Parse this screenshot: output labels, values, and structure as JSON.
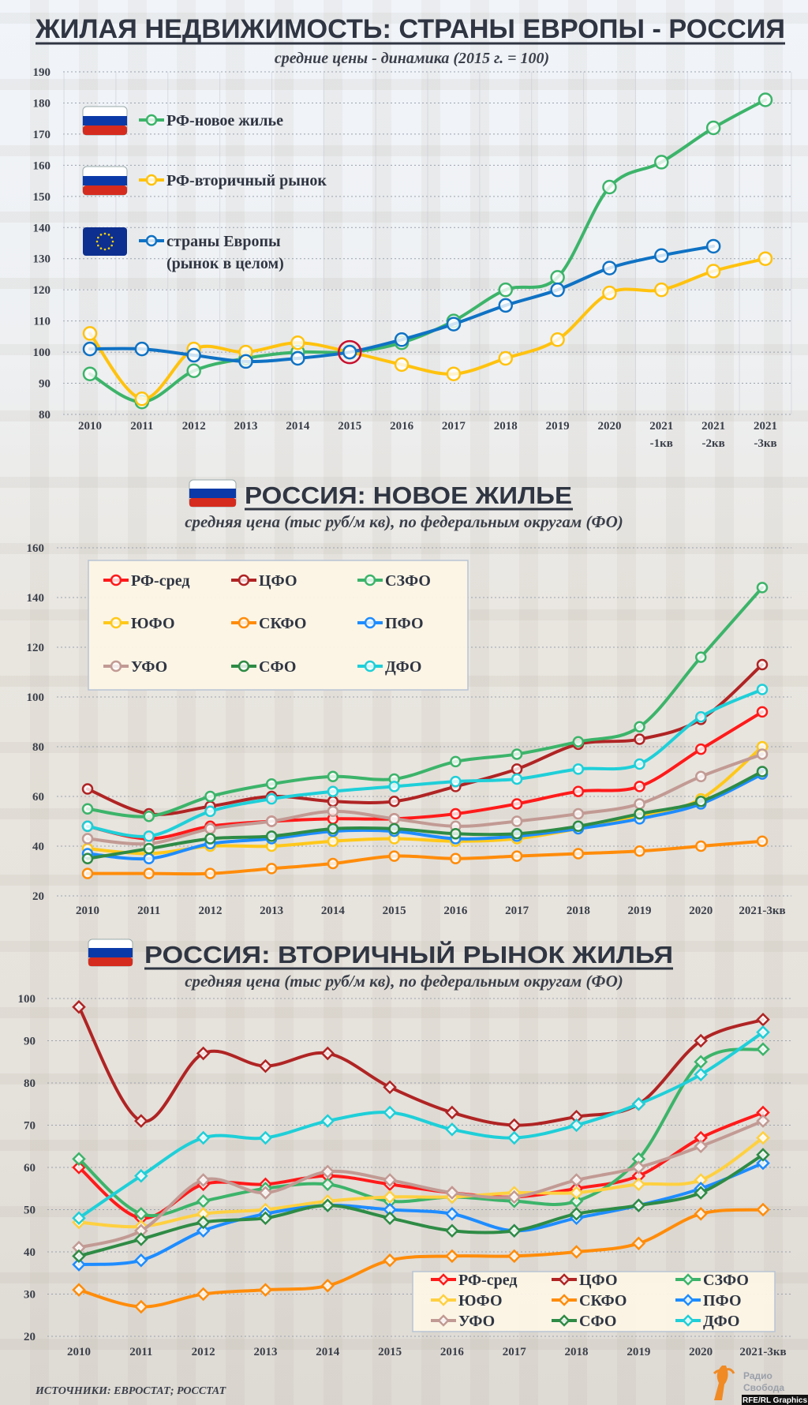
{
  "header": {
    "title": "ЖИЛАЯ НЕДВИЖИМОСТЬ: СТРАНЫ ЕВРОПЫ - РОССИЯ"
  },
  "chart_data": [
    {
      "type": "line",
      "title": "",
      "subtitle": "средние цены - динамика (2015 г. = 100)",
      "categories": [
        "2010",
        "2011",
        "2012",
        "2013",
        "2014",
        "2015",
        "2016",
        "2017",
        "2018",
        "2019",
        "2020",
        "2021 -1кв",
        "2021 -2кв",
        "2021 -3кв"
      ],
      "ylim": [
        80,
        190
      ],
      "yticks": [
        80,
        90,
        100,
        110,
        120,
        130,
        140,
        150,
        160,
        170,
        180,
        190
      ],
      "grid": true,
      "legend": "top-left",
      "highlight_category": "2015",
      "marker": "circle",
      "series": [
        {
          "name": "РФ-новое жилье",
          "flag": "russia-flag",
          "color": "#3cb46a",
          "values": [
            93,
            84,
            94,
            98,
            100,
            100,
            103,
            110,
            120,
            124,
            153,
            161,
            172,
            181
          ]
        },
        {
          "name": "РФ-вторичный рынок",
          "flag": "russia-flag",
          "color": "#ffc20e",
          "values": [
            106,
            85,
            101,
            100,
            103,
            100,
            96,
            93,
            98,
            104,
            119,
            120,
            126,
            130
          ]
        },
        {
          "name": "страны Европы (рынок в целом)",
          "flag": "eu-flag",
          "color": "#0f72c4",
          "values": [
            101,
            101,
            99,
            97,
            98,
            100,
            104,
            109,
            115,
            120,
            127,
            131,
            134,
            null
          ]
        }
      ]
    },
    {
      "type": "line",
      "title": "РОССИЯ: НОВОЕ ЖИЛЬЕ",
      "subtitle": "средняя цена (тыс руб/м кв), по федеральным округам (ФО)",
      "categories": [
        "2010",
        "2011",
        "2012",
        "2013",
        "2014",
        "2015",
        "2016",
        "2017",
        "2018",
        "2019",
        "2020",
        "2021-3кв"
      ],
      "ylim": [
        20,
        160
      ],
      "yticks": [
        20,
        40,
        60,
        80,
        100,
        120,
        140,
        160
      ],
      "grid": true,
      "legend": "top-left",
      "marker": "circle",
      "series": [
        {
          "name": "РФ-сред",
          "color": "#ff1a1a",
          "values": [
            48,
            43,
            48,
            50,
            51,
            51,
            53,
            57,
            62,
            64,
            79,
            94
          ]
        },
        {
          "name": "ЦФО",
          "color": "#b02424",
          "values": [
            63,
            53,
            56,
            60,
            58,
            58,
            64,
            71,
            81,
            83,
            91,
            113
          ]
        },
        {
          "name": "СЗФО",
          "color": "#3cb46a",
          "values": [
            55,
            52,
            60,
            65,
            68,
            67,
            74,
            77,
            82,
            88,
            116,
            144
          ]
        },
        {
          "name": "ЮФО",
          "color": "#ffc81a",
          "values": [
            39,
            37,
            40,
            40,
            42,
            43,
            42,
            43,
            47,
            52,
            59,
            80
          ]
        },
        {
          "name": "СКФО",
          "color": "#ff8c0a",
          "values": [
            29,
            29,
            29,
            31,
            33,
            36,
            35,
            36,
            37,
            38,
            40,
            42
          ]
        },
        {
          "name": "ПФО",
          "color": "#1e8cff",
          "values": [
            37,
            35,
            41,
            43,
            46,
            46,
            43,
            44,
            47,
            51,
            57,
            69
          ]
        },
        {
          "name": "УФО",
          "color": "#c29a94",
          "values": [
            43,
            41,
            47,
            50,
            54,
            51,
            48,
            50,
            53,
            57,
            68,
            77
          ]
        },
        {
          "name": "СФО",
          "color": "#2e8b45",
          "values": [
            35,
            39,
            43,
            44,
            47,
            47,
            45,
            45,
            48,
            53,
            58,
            70
          ]
        },
        {
          "name": "ДФО",
          "color": "#1fcfd8",
          "values": [
            48,
            44,
            54,
            59,
            62,
            64,
            66,
            67,
            71,
            73,
            92,
            103
          ]
        }
      ]
    },
    {
      "type": "line",
      "title": "РОССИЯ: ВТОРИЧНЫЙ РЫНОК ЖИЛЬЯ",
      "subtitle": "средняя цена (тыс руб/м кв), по федеральным округам (ФО)",
      "categories": [
        "2010",
        "2011",
        "2012",
        "2013",
        "2014",
        "2015",
        "2016",
        "2017",
        "2018",
        "2019",
        "2020",
        "2021-3кв"
      ],
      "ylim": [
        20,
        100
      ],
      "yticks": [
        20,
        30,
        40,
        50,
        60,
        70,
        80,
        90,
        100
      ],
      "grid": true,
      "legend": "bottom-right",
      "marker": "diamond",
      "series": [
        {
          "name": "РФ-сред",
          "color": "#ff1a1a",
          "values": [
            60,
            48,
            56,
            56,
            58,
            56,
            54,
            53,
            55,
            58,
            67,
            73
          ]
        },
        {
          "name": "ЦФО",
          "color": "#b02424",
          "values": [
            98,
            71,
            87,
            84,
            87,
            79,
            73,
            70,
            72,
            75,
            90,
            95
          ]
        },
        {
          "name": "СЗФО",
          "color": "#3cb46a",
          "values": [
            62,
            49,
            52,
            55,
            56,
            52,
            53,
            52,
            52,
            62,
            85,
            88
          ]
        },
        {
          "name": "ЮФО",
          "color": "#ffd040",
          "values": [
            47,
            46,
            49,
            50,
            52,
            53,
            53,
            54,
            54,
            56,
            57,
            67
          ]
        },
        {
          "name": "СКФО",
          "color": "#ff8c0a",
          "values": [
            31,
            27,
            30,
            31,
            32,
            38,
            39,
            39,
            40,
            42,
            49,
            50
          ]
        },
        {
          "name": "ПФО",
          "color": "#1e8cff",
          "values": [
            37,
            38,
            45,
            49,
            51,
            50,
            49,
            45,
            48,
            51,
            55,
            61
          ]
        },
        {
          "name": "УФО",
          "color": "#c29a94",
          "values": [
            41,
            45,
            57,
            54,
            59,
            57,
            54,
            53,
            57,
            60,
            65,
            71
          ]
        },
        {
          "name": "СФО",
          "color": "#2e8b45",
          "values": [
            39,
            43,
            47,
            48,
            51,
            48,
            45,
            45,
            49,
            51,
            54,
            63
          ]
        },
        {
          "name": "ДФО",
          "color": "#1fcfd8",
          "values": [
            48,
            58,
            67,
            67,
            71,
            73,
            69,
            67,
            70,
            75,
            82,
            92
          ]
        }
      ]
    }
  ],
  "footer": {
    "sources": "ИСТОЧНИКИ: ЕВРОСТАТ; РОССТАТ",
    "logo_line1": "Радио",
    "logo_line2": "Свобода",
    "credit": "RFE/RL Graphics"
  }
}
